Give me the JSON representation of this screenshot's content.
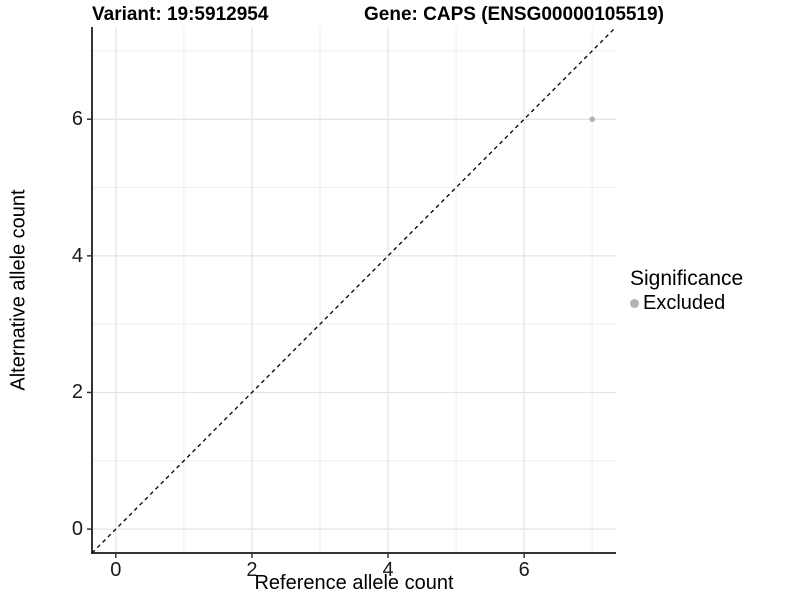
{
  "header": {
    "variant_title": "Variant: 19:5912954",
    "gene_title": "Gene: CAPS (ENSG00000105519)"
  },
  "chart_data": {
    "type": "scatter",
    "xlabel": "Reference allele count",
    "ylabel": "Alternative allele count",
    "xlim": [
      -0.35,
      7.35
    ],
    "ylim": [
      -0.35,
      7.35
    ],
    "x_major_ticks": [
      0,
      2,
      4,
      6
    ],
    "y_major_ticks": [
      0,
      2,
      4,
      6
    ],
    "x_tick_labels": [
      "0",
      "2",
      "4",
      "6"
    ],
    "y_tick_labels": [
      "0",
      "2",
      "4",
      "6"
    ],
    "x_minor_gridlines": [
      1,
      3,
      5,
      7
    ],
    "y_minor_gridlines": [
      1,
      3,
      5,
      7
    ],
    "grid": true,
    "series": [
      {
        "name": "Excluded",
        "color": "#b3b3b3",
        "points": [
          {
            "x": 7,
            "y": 6
          }
        ]
      }
    ],
    "reference_line": {
      "type": "identity",
      "slope": 1,
      "intercept": 0,
      "style": "dashed",
      "color": "#000000"
    },
    "legend": {
      "position": "right",
      "title": "Significance",
      "entries": [
        {
          "label": "Excluded",
          "color": "#b3b3b3"
        }
      ]
    },
    "colors": {
      "grid_major": "#e3e3e3",
      "grid_minor": "#eeeeee",
      "axis_line": "#333333",
      "point": "#b3b3b3",
      "background": "#ffffff"
    }
  }
}
